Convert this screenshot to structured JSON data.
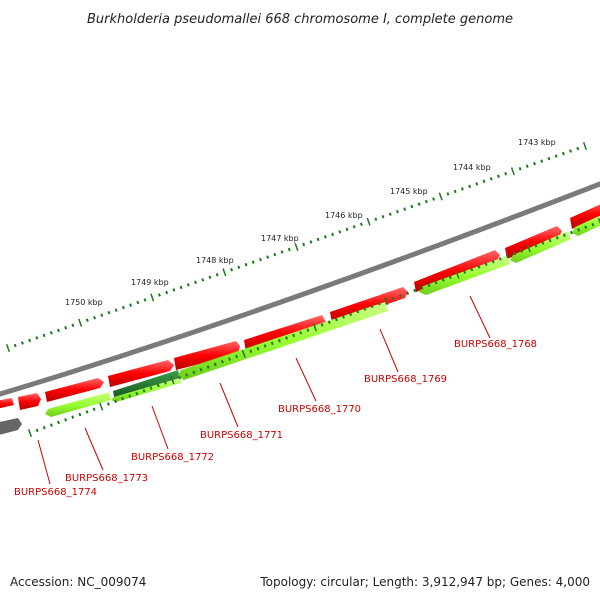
{
  "title": "Burkholderia pseudomallei 668 chromosome I, complete genome",
  "footer": {
    "accession": "Accession: NC_009074",
    "summary": "Topology: circular; Length: 3,912,947 bp; Genes: 4,000"
  },
  "kbp_ticks": [
    "1743 kbp",
    "1744 kbp",
    "1745 kbp",
    "1746 kbp",
    "1747 kbp",
    "1748 kbp",
    "1749 kbp",
    "1750 kbp"
  ],
  "gene_labels": [
    "BURPS668_1768",
    "BURPS668_1769",
    "BURPS668_1770",
    "BURPS668_1771",
    "BURPS668_1772",
    "BURPS668_1773",
    "BURPS668_1774"
  ],
  "colors": {
    "backbone": "#7a7a7a",
    "cds_forward": "#ff0000",
    "cds_reverse": "#99ff33",
    "gene_highlight": "#1f7a2e",
    "tick": "#1e7a1e",
    "label": "#cc0000",
    "gray_feature": "#666666"
  }
}
